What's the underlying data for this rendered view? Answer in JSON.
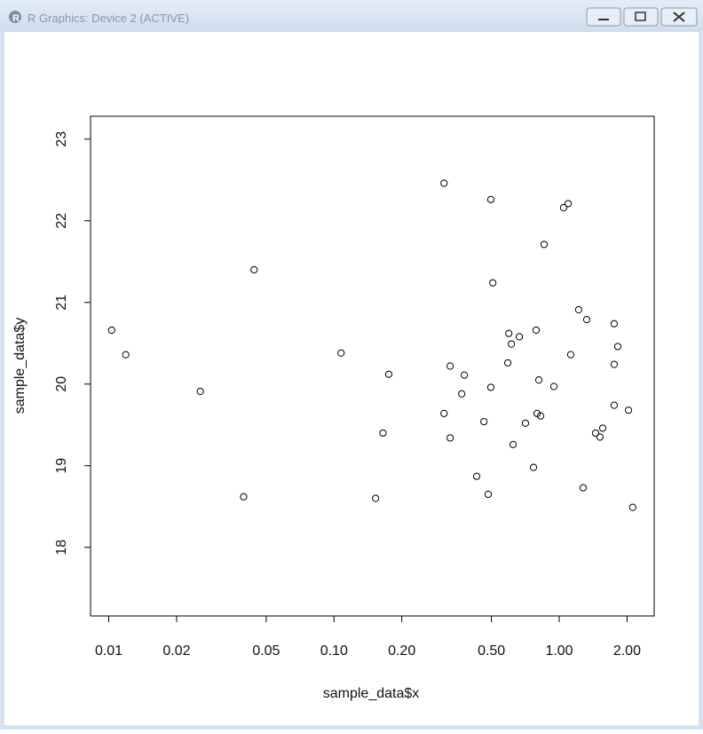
{
  "window": {
    "title": "R Graphics: Device 2 (ACTIVE)"
  },
  "chart_data": {
    "type": "scatter",
    "xlabel": "sample_data$x",
    "ylabel": "sample_data$y",
    "xscale": "log",
    "color": "#000000",
    "xlim": [
      0.0083,
      2.64
    ],
    "ylim": [
      17.16,
      23.28
    ],
    "xticks": [
      {
        "value": 0.01,
        "label": "0.01"
      },
      {
        "value": 0.02,
        "label": "0.02"
      },
      {
        "value": 0.05,
        "label": "0.05"
      },
      {
        "value": 0.1,
        "label": "0.10"
      },
      {
        "value": 0.2,
        "label": "0.20"
      },
      {
        "value": 0.5,
        "label": "0.50"
      },
      {
        "value": 1,
        "label": "1.00"
      },
      {
        "value": 2,
        "label": "2.00"
      }
    ],
    "yticks": [
      18,
      19,
      20,
      21,
      22,
      23
    ],
    "x": [
      0.0103,
      0.0119,
      0.0255,
      0.0397,
      0.0442,
      0.1075,
      0.153,
      0.165,
      0.175,
      0.308,
      0.308,
      0.328,
      0.328,
      0.369,
      0.379,
      0.43,
      0.463,
      0.484,
      0.497,
      0.497,
      0.507,
      0.591,
      0.597,
      0.613,
      0.624,
      0.665,
      0.708,
      0.769,
      0.79,
      0.797,
      0.812,
      0.827,
      0.857,
      0.947,
      1.046,
      1.095,
      1.125,
      1.22,
      1.277,
      1.325,
      1.45,
      1.517,
      1.56,
      1.754,
      1.754,
      1.754,
      1.82,
      2.03,
      2.12
    ],
    "values": [
      20.66,
      20.36,
      19.91,
      18.62,
      21.4,
      20.38,
      18.6,
      19.4,
      20.12,
      22.46,
      19.64,
      20.22,
      19.34,
      19.88,
      20.11,
      18.87,
      19.54,
      18.65,
      22.26,
      19.96,
      21.24,
      20.26,
      20.62,
      20.49,
      19.26,
      20.58,
      19.52,
      18.98,
      20.66,
      19.64,
      20.05,
      19.61,
      21.71,
      19.97,
      22.16,
      22.21,
      20.36,
      20.91,
      18.73,
      20.79,
      19.4,
      19.35,
      19.46,
      20.74,
      20.24,
      19.74,
      20.46,
      19.68,
      18.49
    ]
  }
}
